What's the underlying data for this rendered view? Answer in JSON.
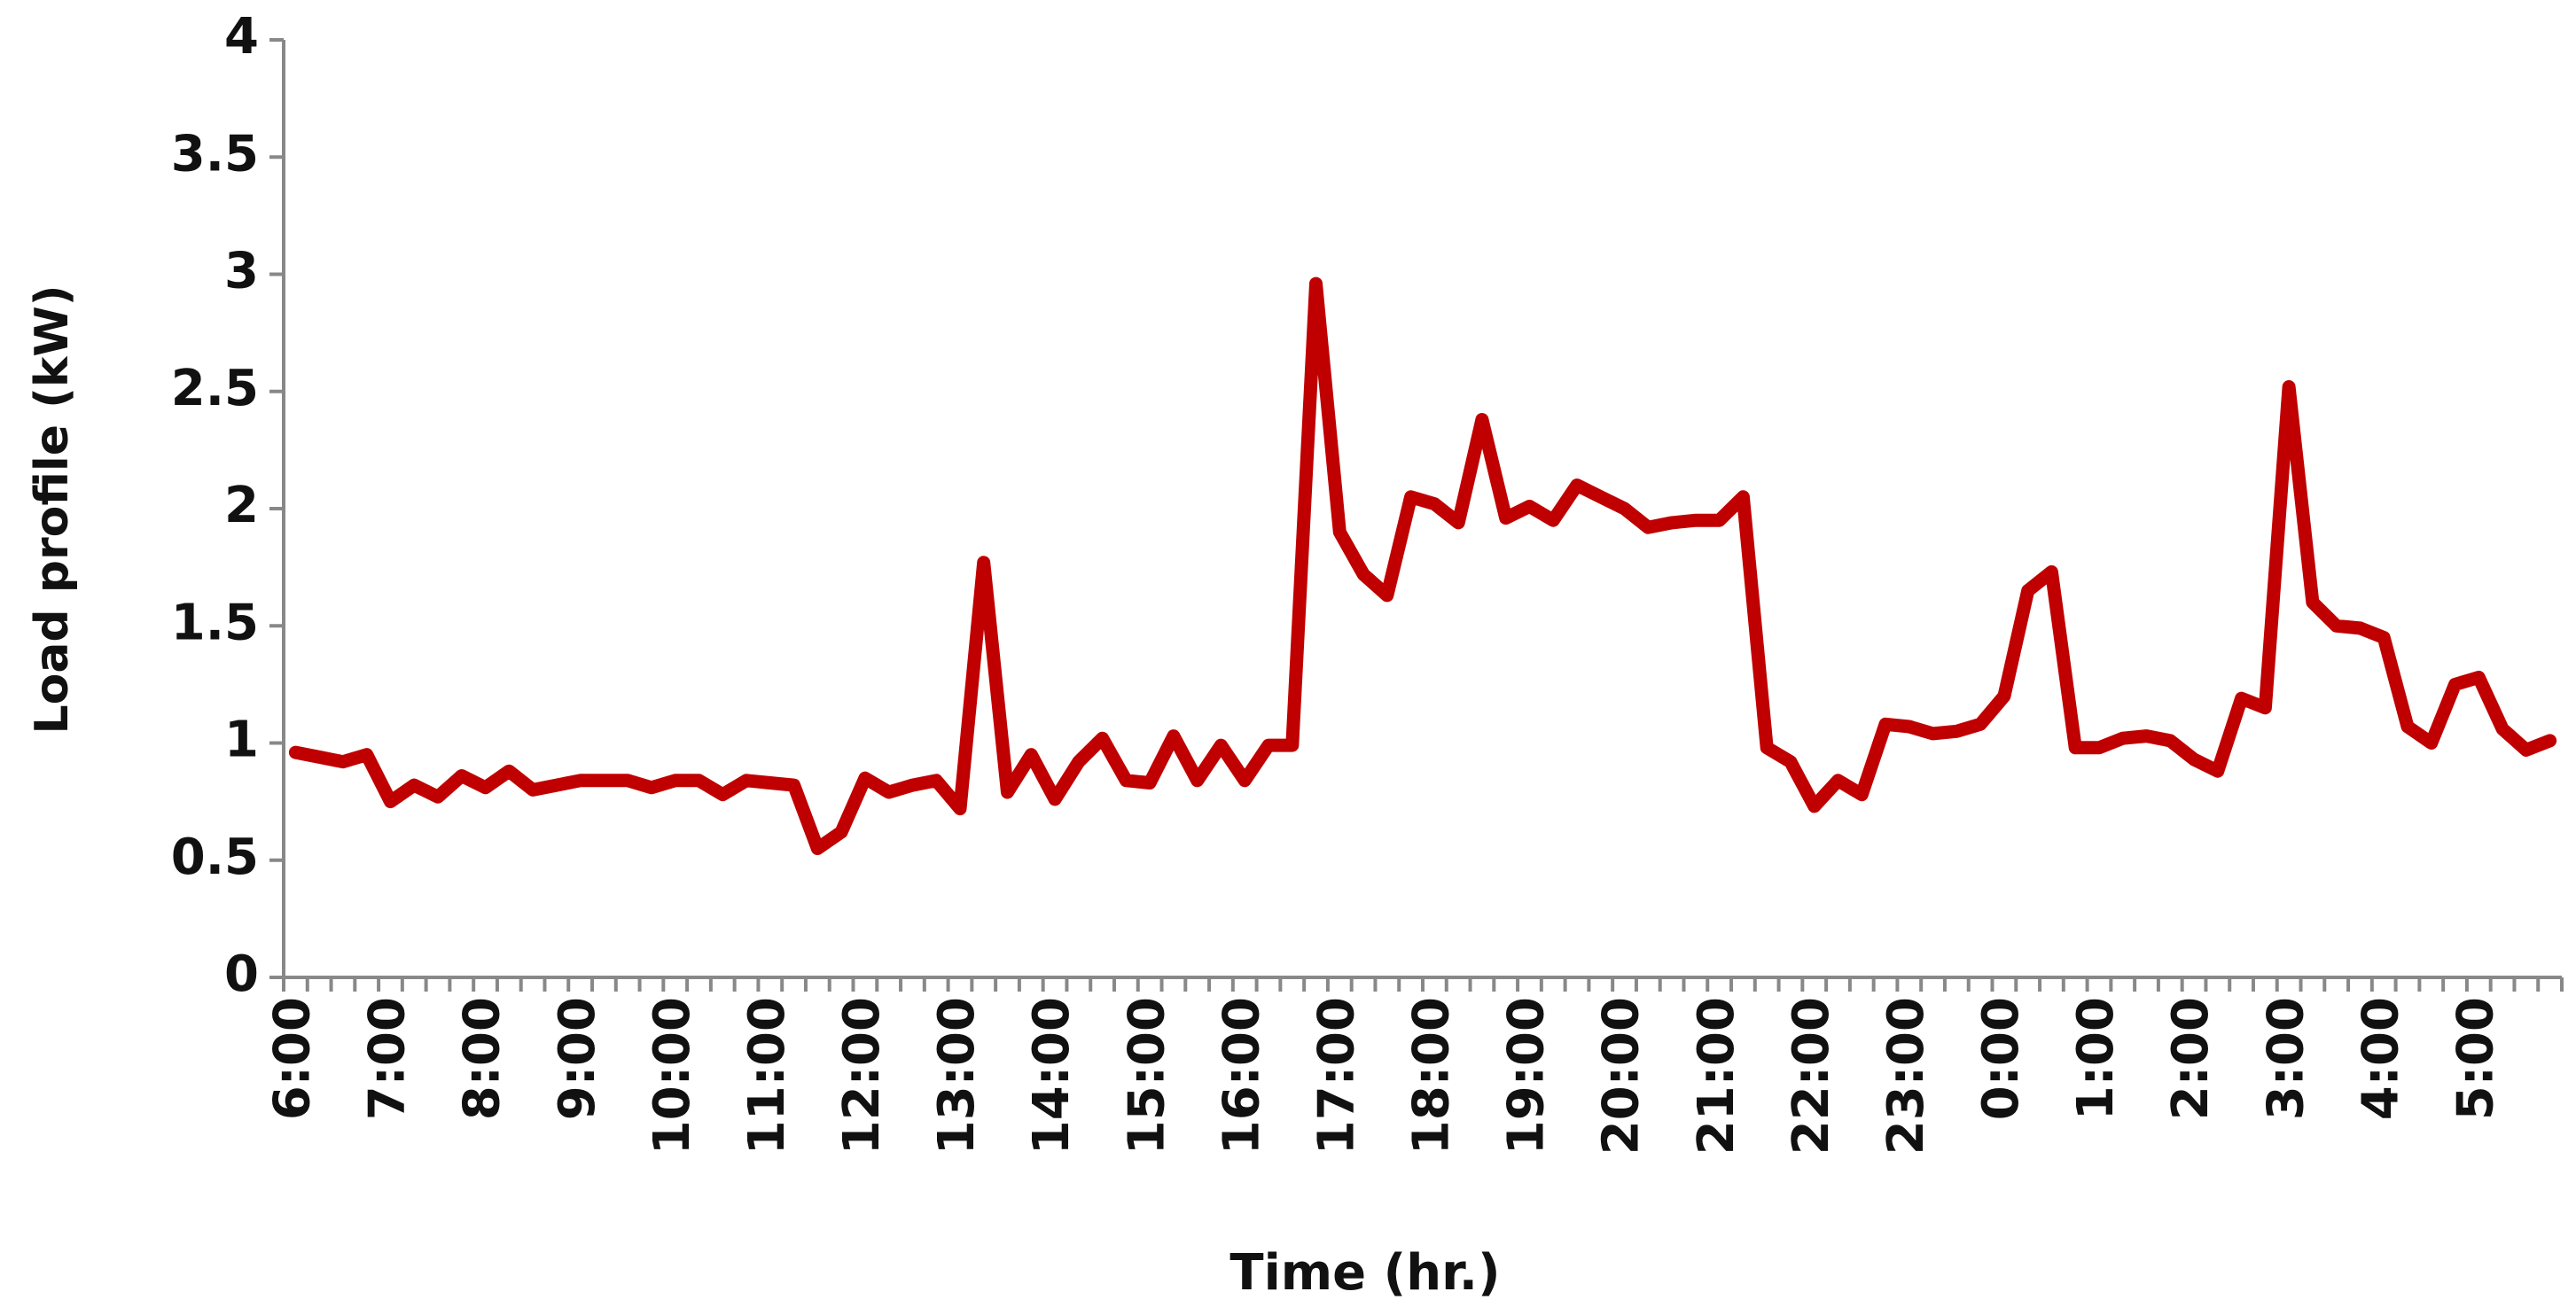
{
  "chart_data": {
    "type": "line",
    "x_label": "Time (hr.)",
    "y_label": "Load profile (kW)",
    "categories": [
      "6:00",
      null,
      null,
      null,
      "7:00",
      null,
      null,
      null,
      "8:00",
      null,
      null,
      null,
      "9:00",
      null,
      null,
      null,
      "10:00",
      null,
      null,
      null,
      "11:00",
      null,
      null,
      null,
      "12:00",
      null,
      null,
      null,
      "13:00",
      null,
      null,
      null,
      "14:00",
      null,
      null,
      null,
      "15:00",
      null,
      null,
      null,
      "16:00",
      null,
      null,
      null,
      "17:00",
      null,
      null,
      null,
      "18:00",
      null,
      null,
      null,
      "19:00",
      null,
      null,
      null,
      "20:00",
      null,
      null,
      null,
      "21:00",
      null,
      null,
      null,
      "22:00",
      null,
      null,
      null,
      "23:00",
      null,
      null,
      null,
      "0:00",
      null,
      null,
      null,
      "1:00",
      null,
      null,
      null,
      "2:00",
      null,
      null,
      null,
      "3:00",
      null,
      null,
      null,
      "4:00",
      null,
      null,
      null,
      "5:00",
      null,
      null,
      null
    ],
    "values": [
      0.96,
      0.94,
      0.92,
      0.95,
      0.75,
      0.82,
      0.77,
      0.86,
      0.81,
      0.88,
      0.8,
      0.82,
      0.84,
      0.84,
      0.84,
      0.81,
      0.84,
      0.84,
      0.78,
      0.84,
      0.83,
      0.82,
      0.55,
      0.62,
      0.85,
      0.79,
      0.82,
      0.84,
      0.72,
      1.77,
      0.79,
      0.95,
      0.76,
      0.92,
      1.02,
      0.84,
      0.83,
      1.03,
      0.84,
      0.99,
      0.84,
      0.99,
      0.99,
      2.96,
      1.9,
      1.72,
      1.63,
      2.05,
      2.02,
      1.94,
      2.38,
      1.96,
      2.01,
      1.95,
      2.1,
      2.05,
      2.0,
      1.92,
      1.94,
      1.95,
      1.95,
      2.05,
      0.98,
      0.92,
      0.73,
      0.84,
      0.78,
      1.08,
      1.07,
      1.04,
      1.05,
      1.08,
      1.2,
      1.65,
      1.73,
      0.98,
      0.98,
      1.02,
      1.03,
      1.01,
      0.93,
      0.88,
      1.19,
      1.15,
      2.52,
      1.6,
      1.5,
      1.49,
      1.45,
      1.07,
      1.0,
      1.25,
      1.28,
      1.06,
      0.97,
      1.01
    ],
    "color": "#c00000",
    "ylim": [
      0,
      4
    ],
    "yticks": [
      0,
      0.5,
      1,
      1.5,
      2,
      2.5,
      3,
      3.5,
      4
    ],
    "grid": false
  }
}
